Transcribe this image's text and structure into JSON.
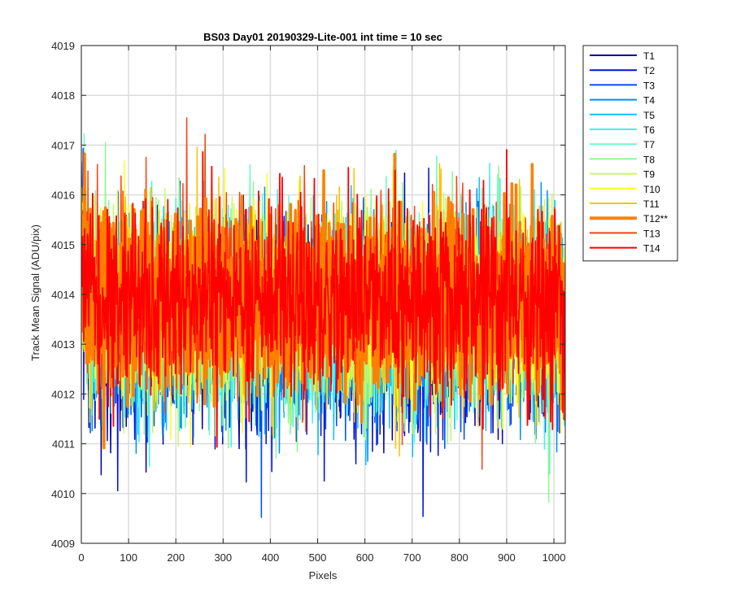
{
  "chart_data": {
    "type": "line",
    "title": "BS03 Day01 20190329-Lite-001 int time = 10 sec",
    "xlabel": "Pixels",
    "ylabel": "Track Mean Signal (ADU/pix)",
    "xlim": [
      0,
      1024
    ],
    "ylim": [
      4009,
      4019
    ],
    "xticks": [
      0,
      100,
      200,
      300,
      400,
      500,
      600,
      700,
      800,
      900,
      1000
    ],
    "yticks": [
      4009,
      4010,
      4011,
      4012,
      4013,
      4014,
      4015,
      4016,
      4017,
      4018,
      4019
    ],
    "grid": true,
    "legend_position": "outside-right-top",
    "n_points": 1024,
    "series": [
      {
        "name": "T1",
        "color": "#0000a8",
        "mean": 4013.3,
        "noise": 0.95,
        "width": 1.5,
        "highlight": false
      },
      {
        "name": "T2",
        "color": "#0010d8",
        "mean": 4013.35,
        "noise": 0.95,
        "width": 1.5,
        "highlight": false
      },
      {
        "name": "T3",
        "color": "#0050f0",
        "mean": 4013.4,
        "noise": 0.95,
        "width": 1.5,
        "highlight": false
      },
      {
        "name": "T4",
        "color": "#0090ff",
        "mean": 4013.45,
        "noise": 0.95,
        "width": 1.5,
        "highlight": false
      },
      {
        "name": "T5",
        "color": "#10c0ff",
        "mean": 4013.5,
        "noise": 0.95,
        "width": 1.5,
        "highlight": false
      },
      {
        "name": "T6",
        "color": "#40f0f0",
        "mean": 4013.55,
        "noise": 0.95,
        "width": 1.5,
        "highlight": false
      },
      {
        "name": "T7",
        "color": "#70f8c8",
        "mean": 4013.6,
        "noise": 0.95,
        "width": 1.5,
        "highlight": false
      },
      {
        "name": "T8",
        "color": "#90f890",
        "mean": 4013.65,
        "noise": 0.95,
        "width": 1.5,
        "highlight": false
      },
      {
        "name": "T9",
        "color": "#c8f860",
        "mean": 4013.7,
        "noise": 0.95,
        "width": 1.5,
        "highlight": false
      },
      {
        "name": "T10",
        "color": "#ffff20",
        "mean": 4013.75,
        "noise": 0.95,
        "width": 1.5,
        "highlight": false
      },
      {
        "name": "T11",
        "color": "#ffc000",
        "mean": 4013.8,
        "noise": 0.95,
        "width": 1.5,
        "highlight": false
      },
      {
        "name": "T12**",
        "color": "#ff8000",
        "mean": 4013.85,
        "noise": 0.95,
        "width": 3.5,
        "highlight": true
      },
      {
        "name": "T13",
        "color": "#ff4010",
        "mean": 4013.85,
        "noise": 0.95,
        "width": 1.5,
        "highlight": false
      },
      {
        "name": "T14",
        "color": "#ff0000",
        "mean": 4013.9,
        "noise": 0.95,
        "width": 1.8,
        "highlight": false
      }
    ]
  }
}
